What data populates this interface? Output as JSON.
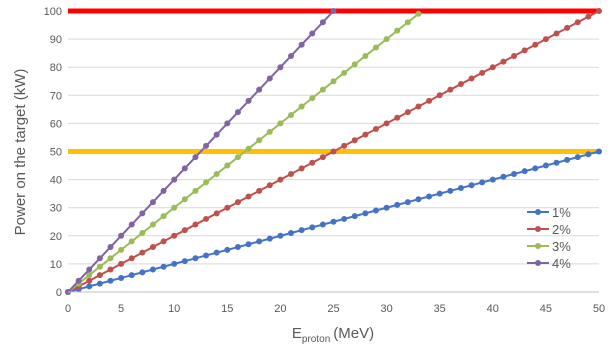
{
  "chart_data": {
    "type": "line",
    "title": "",
    "xlabel": "E",
    "xlabel_subscript": "proton",
    "xlabel_unit": "(MeV)",
    "ylabel": "Power on the target (kW)",
    "xlim": [
      0,
      50
    ],
    "ylim": [
      0,
      100
    ],
    "xticks": [
      "0",
      "5",
      "10",
      "15",
      "20",
      "25",
      "30",
      "35",
      "40",
      "45",
      "50"
    ],
    "yticks": [
      "0",
      "10",
      "20",
      "30",
      "40",
      "50",
      "60",
      "70",
      "80",
      "90",
      "100"
    ],
    "grid": true,
    "legend_position": "right",
    "x_step": 1,
    "series": [
      {
        "name": "1%",
        "color": "#4472C4",
        "slope": 1
      },
      {
        "name": "2%",
        "color": "#C0504D",
        "slope": 2
      },
      {
        "name": "3%",
        "color": "#9BBB59",
        "slope": 3
      },
      {
        "name": "4%",
        "color": "#8064A2",
        "slope": 4
      }
    ],
    "reference_lines": [
      {
        "y": 100,
        "color": "#FF0000"
      },
      {
        "y": 50,
        "color": "#FFC000"
      }
    ]
  }
}
